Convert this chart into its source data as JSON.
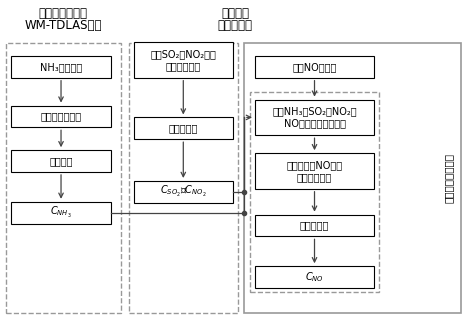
{
  "title_left_1": "基于波长调制的",
  "title_left_2": "WM-TDLAS方法",
  "title_mid_1": "紫外差分",
  "title_mid_2": "吸收光谱法",
  "right_label": "交叉干扰修正模型",
  "col1_boxes": [
    "NH₃吸收信号",
    "基线估计与剔除",
    "曲线拟合",
    "$C_{NH_3}$"
  ],
  "col2_boxes": [
    "计算SO₂、NO₂吸光\n度、吸收截面",
    "最小二乘法",
    "$C_{SO_2}$、$C_{NO_2}$"
  ],
  "col3_boxes": [
    "计算NO吸光度",
    "计算NH₃、SO₂、NO₂对\nNO吸光度的干扰光谱",
    "去除干扰后NO吸光\n度、吸收截面",
    "最小二乘法",
    "$C_{NO}$"
  ],
  "bg_color": "#ffffff",
  "box_facecolor": "#ffffff",
  "box_edgecolor": "#000000",
  "dashed_edgecolor": "#999999",
  "arrow_color": "#444444",
  "outer_solid_color": "#999999"
}
